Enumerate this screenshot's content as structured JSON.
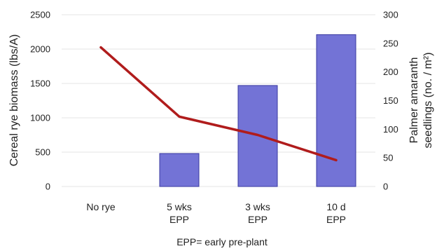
{
  "chart_data": {
    "type": "bar",
    "categories": [
      [
        "No rye"
      ],
      [
        "5 wks",
        "EPP"
      ],
      [
        "3 wks",
        "EPP"
      ],
      [
        "10 d",
        "EPP"
      ]
    ],
    "series": [
      {
        "kind": "bar",
        "axis": "left",
        "values": [
          0,
          480,
          1470,
          2210
        ],
        "color": "#7373d6"
      },
      {
        "kind": "line",
        "axis": "right",
        "values": [
          243,
          122,
          90,
          46
        ],
        "color": "#b01c1c"
      }
    ],
    "ylabel_left": "Cereal rye biomass (lbs/A)",
    "ylabel_right": [
      "Palmer amaranth",
      "seedlings (no. / m²)"
    ],
    "xlabel": "EPP= early pre-plant",
    "ylim_left": [
      0,
      2500
    ],
    "yticks_left": [
      "0",
      "500",
      "1000",
      "1500",
      "2000",
      "2500"
    ],
    "ylim_right": [
      0,
      300
    ],
    "yticks_right": [
      "0",
      "50",
      "100",
      "150",
      "200",
      "250",
      "300"
    ],
    "grid": true
  }
}
